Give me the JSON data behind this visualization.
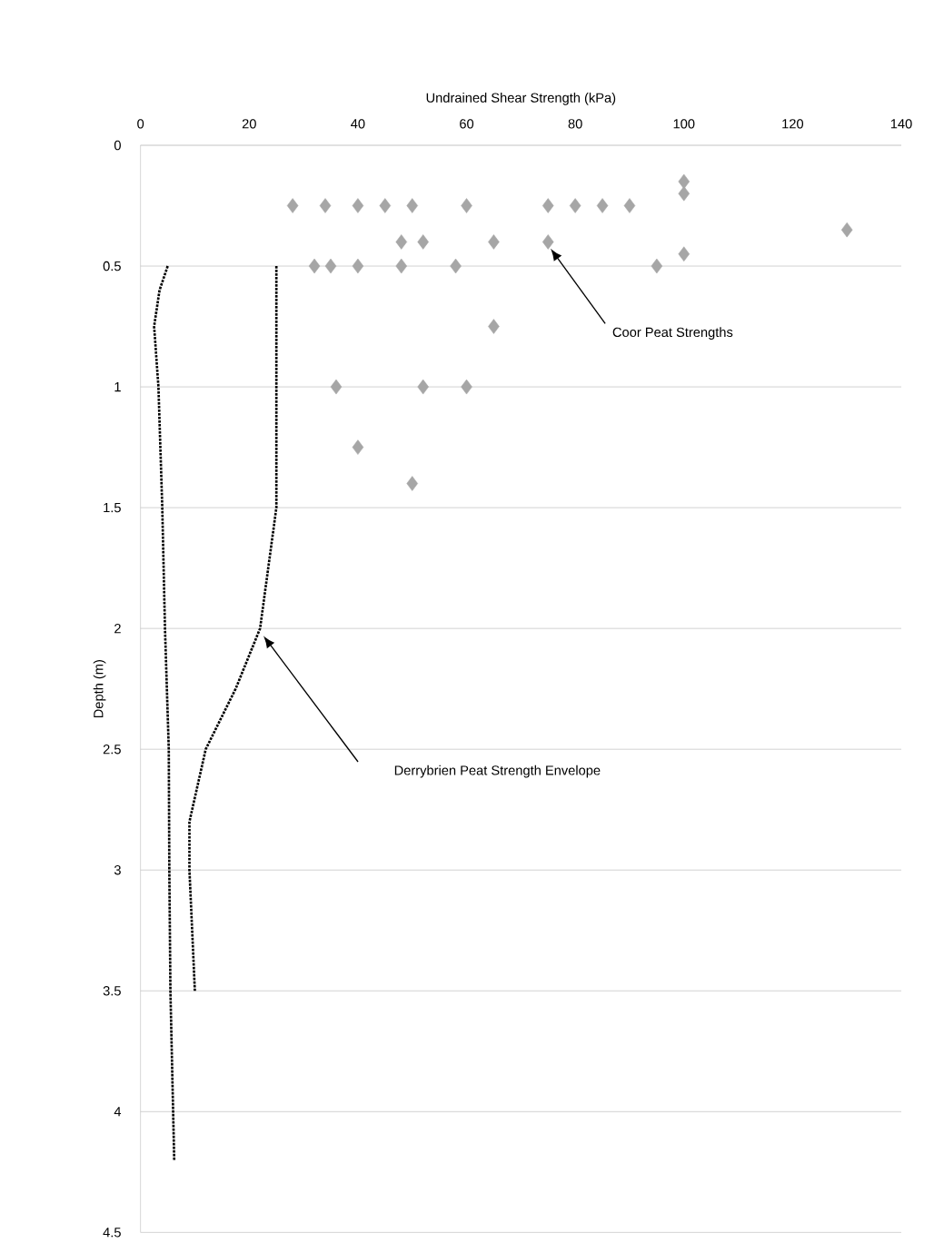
{
  "chart_data": {
    "type": "scatter",
    "xlabel": "Undrained Shear Strength (kPa)",
    "ylabel": "Depth (m)",
    "xlim": [
      0,
      140
    ],
    "xticks": [
      0,
      20,
      40,
      60,
      80,
      100,
      120,
      140
    ],
    "ylim": [
      4.5,
      0
    ],
    "yticks": [
      0,
      0.5,
      1,
      1.5,
      2,
      2.5,
      3,
      3.5,
      4,
      4.5
    ],
    "grid": "y",
    "series": [
      {
        "marker": "diamond",
        "color": "#a6a6a6",
        "x": [
          28,
          34,
          40,
          45,
          50,
          60,
          75,
          80,
          85,
          90,
          100,
          100,
          130,
          48,
          52,
          65,
          75,
          100,
          32,
          35,
          40,
          48,
          58,
          95,
          65,
          36,
          52,
          60,
          40,
          50
        ],
        "values": [
          0.25,
          0.25,
          0.25,
          0.25,
          0.25,
          0.25,
          0.25,
          0.25,
          0.25,
          0.25,
          0.15,
          0.2,
          0.35,
          0.4,
          0.4,
          0.4,
          0.4,
          0.45,
          0.5,
          0.5,
          0.5,
          0.5,
          0.5,
          0.5,
          0.75,
          1.0,
          1.0,
          1.0,
          1.25,
          1.4
        ]
      },
      {
        "type": "line",
        "marker": "none",
        "line_style": "dotted",
        "color": "#000000",
        "x": [
          5,
          3.5,
          2.5,
          3.3,
          4,
          4.5,
          5.2,
          5.3,
          5.5,
          6.2
        ],
        "values": [
          0.5,
          0.6,
          0.75,
          1.0,
          1.5,
          2.0,
          2.5,
          3.0,
          3.5,
          4.2
        ]
      },
      {
        "type": "line",
        "marker": "none",
        "line_style": "dotted",
        "color": "#000000",
        "x": [
          25,
          25,
          22,
          17.5,
          12,
          9,
          9,
          10
        ],
        "values": [
          0.5,
          1.5,
          2.0,
          2.25,
          2.5,
          2.8,
          3.0,
          3.5
        ]
      }
    ],
    "annotations": [
      "Coor Peat Strengths",
      "Derrybrien Peat Strength Envelope"
    ]
  }
}
